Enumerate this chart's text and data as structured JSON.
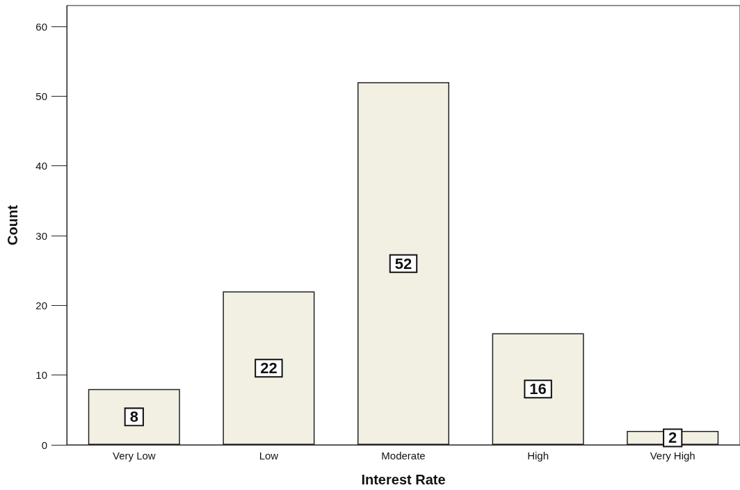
{
  "chart_data": {
    "type": "bar",
    "xlabel": "Interest Rate",
    "ylabel": "Count",
    "categories": [
      "Very Low",
      "Low",
      "Moderate",
      "High",
      "Very High"
    ],
    "values": [
      8,
      22,
      52,
      16,
      2
    ],
    "color": "#f2f0e2",
    "ylim": [
      0,
      63
    ],
    "yticks": [
      0,
      10,
      20,
      30,
      40,
      50,
      60
    ],
    "grid": false,
    "data_labels": true
  }
}
